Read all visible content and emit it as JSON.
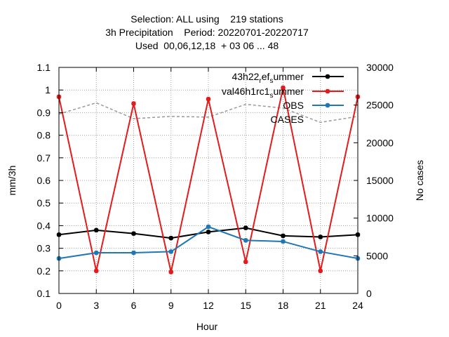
{
  "chart_data": {
    "type": "line",
    "title_lines": [
      "Selection: ALL using    219 stations",
      "3h Precipitation    Period: 20220701-20220717",
      "Used  00,06,12,18  + 03 06 ... 48"
    ],
    "xlabel": "Hour",
    "ylabel": "mm/3h",
    "y2label": "No cases",
    "x": [
      0,
      3,
      6,
      9,
      12,
      15,
      18,
      21,
      24
    ],
    "xlim": [
      0,
      24
    ],
    "ylim": [
      0.1,
      1.1
    ],
    "y2lim": [
      0,
      30000
    ],
    "x_ticks": [
      "0",
      "3",
      "6",
      "9",
      "12",
      "15",
      "18",
      "21",
      "24"
    ],
    "y_ticks": [
      "0.1",
      "0.2",
      "0.3",
      "0.4",
      "0.5",
      "0.6",
      "0.7",
      "0.8",
      "0.9",
      "1",
      "1.1"
    ],
    "y2_ticks": [
      "0",
      "5000",
      "10000",
      "15000",
      "20000",
      "25000",
      "30000"
    ],
    "grid": true,
    "legend_position": "top-right",
    "series": [
      {
        "name_parts": [
          "43h22",
          "r",
          "ef",
          "s",
          "ummer"
        ],
        "color": "#000000",
        "axis": "y",
        "values": [
          0.36,
          0.38,
          0.365,
          0.345,
          0.372,
          0.39,
          0.355,
          0.35,
          0.36
        ]
      },
      {
        "name_parts": [
          "val46h1rc1",
          "s",
          "ummer"
        ],
        "color": "#e41a1c",
        "axis": "y",
        "values": [
          0.97,
          0.2,
          0.94,
          0.195,
          0.96,
          0.24,
          1.01,
          0.2,
          0.97
        ]
      },
      {
        "name": "OBS",
        "color": "#1f77b4",
        "axis": "y",
        "values": [
          0.255,
          0.28,
          0.28,
          0.285,
          0.395,
          0.335,
          0.33,
          0.285,
          0.255
        ]
      },
      {
        "name": "CASES",
        "color": "#999999",
        "axis": "y2",
        "dashed": true,
        "values": [
          23800,
          25300,
          23200,
          23500,
          23400,
          25100,
          24600,
          22700,
          23500
        ]
      }
    ]
  }
}
